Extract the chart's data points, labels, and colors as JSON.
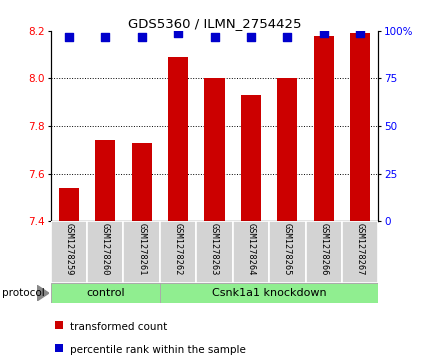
{
  "title": "GDS5360 / ILMN_2754425",
  "samples": [
    "GSM1278259",
    "GSM1278260",
    "GSM1278261",
    "GSM1278262",
    "GSM1278263",
    "GSM1278264",
    "GSM1278265",
    "GSM1278266",
    "GSM1278267"
  ],
  "red_values": [
    7.54,
    7.74,
    7.73,
    8.09,
    8.0,
    7.93,
    8.0,
    8.18,
    8.19
  ],
  "blue_values": [
    97,
    97,
    97,
    99,
    97,
    97,
    97,
    99,
    99
  ],
  "ylim_left": [
    7.4,
    8.2
  ],
  "ylim_right": [
    0,
    100
  ],
  "yticks_left": [
    7.4,
    7.6,
    7.8,
    8.0,
    8.2
  ],
  "yticks_right": [
    0,
    25,
    50,
    75,
    100
  ],
  "ytick_labels_right": [
    "0",
    "25",
    "50",
    "75",
    "100%"
  ],
  "bar_color": "#cc0000",
  "dot_color": "#0000cc",
  "control_samples": 3,
  "protocol_label": "protocol",
  "group_labels": [
    "control",
    "Csnk1a1 knockdown"
  ],
  "group_color": "#90ee90",
  "bg_color": "#d3d3d3",
  "legend_red": "transformed count",
  "legend_blue": "percentile rank within the sample",
  "bar_width": 0.55,
  "dot_size": 28
}
